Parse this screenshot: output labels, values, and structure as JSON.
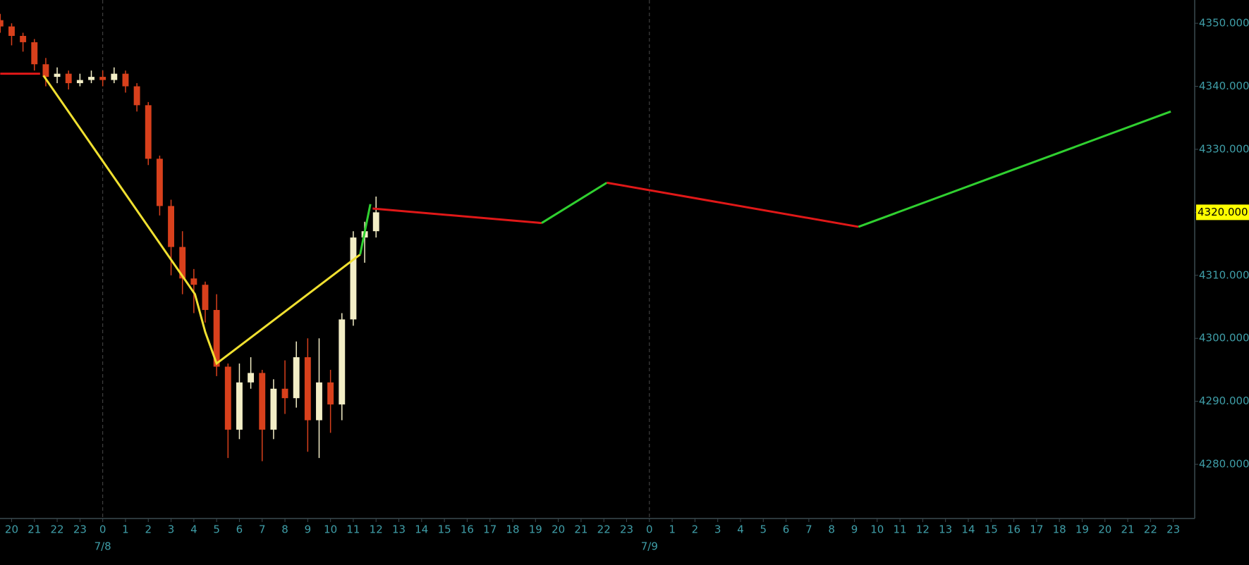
{
  "chart_data": {
    "type": "candlestick",
    "xlim": [
      -4.51,
      47.94
    ],
    "ylim": [
      4271.4,
      4353.7
    ],
    "xticks": [
      {
        "value": -4,
        "label": "20"
      },
      {
        "value": -3,
        "label": "21"
      },
      {
        "value": -2,
        "label": "22"
      },
      {
        "value": -1,
        "label": "23"
      },
      0,
      1,
      2,
      3,
      4,
      5,
      6,
      7,
      8,
      9,
      10,
      11,
      12,
      13,
      14,
      15,
      16,
      17,
      18,
      19,
      20,
      21,
      22,
      23,
      {
        "value": 24,
        "label": "0"
      },
      {
        "value": 25,
        "label": "1"
      },
      {
        "value": 26,
        "label": "2"
      },
      {
        "value": 27,
        "label": "3"
      },
      {
        "value": 28,
        "label": "4"
      },
      {
        "value": 29,
        "label": "5"
      },
      {
        "value": 30,
        "label": "6"
      },
      {
        "value": 31,
        "label": "7"
      },
      {
        "value": 32,
        "label": "8"
      },
      {
        "value": 33,
        "label": "9"
      },
      {
        "value": 34,
        "label": "10"
      },
      {
        "value": 35,
        "label": "11"
      },
      {
        "value": 36,
        "label": "12"
      },
      {
        "value": 37,
        "label": "13"
      },
      {
        "value": 38,
        "label": "14"
      },
      {
        "value": 39,
        "label": "15"
      },
      {
        "value": 40,
        "label": "16"
      },
      {
        "value": 41,
        "label": "17"
      },
      {
        "value": 42,
        "label": "18"
      },
      {
        "value": 43,
        "label": "19"
      },
      {
        "value": 44,
        "label": "20"
      },
      {
        "value": 45,
        "label": "21"
      },
      {
        "value": 46,
        "label": "22"
      },
      {
        "value": 47,
        "label": "23"
      }
    ],
    "date_labels": [
      {
        "value": 0,
        "label": "7/8"
      },
      {
        "value": 24,
        "label": "7/9"
      }
    ],
    "yticks": [
      {
        "value": 4280,
        "label": "4280.000"
      },
      {
        "value": 4290,
        "label": "4290.000"
      },
      {
        "value": 4300,
        "label": "4300.000"
      },
      {
        "value": 4310,
        "label": "4310.000"
      },
      {
        "value": 4320,
        "label": "4320.000"
      },
      {
        "value": 4330,
        "label": "4330.000"
      },
      {
        "value": 4340,
        "label": "4340.000"
      },
      {
        "value": 4350,
        "label": "4350.000"
      }
    ],
    "last_price": {
      "value": 4320,
      "label": "4320.000"
    },
    "up_color": "#f3eec6",
    "down_color": "#d8401c",
    "x": [
      -4.5,
      -4,
      -3.5,
      -3,
      -2.5,
      -2,
      -1.5,
      -1,
      -0.5,
      0,
      0.5,
      1,
      1.5,
      2,
      2.5,
      3,
      3.5,
      4,
      4.5,
      5,
      5.5,
      6,
      6.5,
      7,
      7.5,
      8,
      8.5,
      9,
      9.5,
      10,
      10.5,
      11,
      11.5,
      12
    ],
    "open": [
      4350.5,
      4349.5,
      4348,
      4347,
      4343.5,
      4341.5,
      4342,
      4340.5,
      4341,
      4341.5,
      4341,
      4342,
      4340,
      4337,
      4328.5,
      4321,
      4314.5,
      4309.5,
      4308.5,
      4304.5,
      4295.5,
      4285.5,
      4293,
      4294.5,
      4285.5,
      4292,
      4290.5,
      4297,
      4287,
      4293,
      4289.5,
      4303,
      4316,
      4317
    ],
    "high": [
      4351.5,
      4350,
      4348.5,
      4347.5,
      4344.5,
      4343,
      4342.5,
      4342,
      4342.5,
      4342.5,
      4343,
      4342.5,
      4340.5,
      4337.5,
      4329,
      4322,
      4317,
      4311,
      4309,
      4307,
      4296,
      4296,
      4297,
      4295,
      4293.5,
      4296.5,
      4299.5,
      4300,
      4300,
      4295,
      4304,
      4317,
      4318.5,
      4322.5
    ],
    "low": [
      4348.5,
      4346.5,
      4345.5,
      4342.5,
      4340,
      4340.5,
      4339.5,
      4340,
      4340.5,
      4340,
      4340.5,
      4339,
      4336,
      4327.5,
      4319.5,
      4310,
      4307,
      4304,
      4302.5,
      4294,
      4281,
      4284,
      4292,
      4280.5,
      4284,
      4288,
      4289,
      4282,
      4281,
      4285,
      4287,
      4302,
      4312,
      4316
    ],
    "close": [
      4349.5,
      4348,
      4347,
      4343.5,
      4341.5,
      4342,
      4340.5,
      4341,
      4341.5,
      4341,
      4342,
      4340,
      4337,
      4328.5,
      4321,
      4314.5,
      4309.5,
      4308.5,
      4304.5,
      4295.5,
      4285.5,
      4293,
      4294.5,
      4285.5,
      4292,
      4290.5,
      4297,
      4287,
      4293,
      4289.5,
      4303,
      4316,
      4317,
      4320
    ],
    "lines": [
      {
        "color": "#e01818",
        "x": [
          -4.5,
          -2.75
        ],
        "values": [
          4342,
          4342
        ]
      },
      {
        "color": "#f0e030",
        "x": [
          -2.6,
          4.05,
          4.5,
          5.0,
          11.3
        ],
        "values": [
          4341.7,
          4307,
          4301,
          4296,
          4313.3
        ]
      },
      {
        "color": "#30d030",
        "x": [
          11.3,
          11.75
        ],
        "values": [
          4313.3,
          4321.3
        ]
      },
      {
        "color": "#e01818",
        "x": [
          11.85,
          19.27
        ],
        "values": [
          4320.6,
          4318.3
        ]
      },
      {
        "color": "#30d030",
        "x": [
          19.27,
          22.13
        ],
        "values": [
          4318.3,
          4324.7
        ]
      },
      {
        "color": "#e01818",
        "x": [
          22.13,
          33.18
        ],
        "values": [
          4324.7,
          4317.7
        ]
      },
      {
        "color": "#30d030",
        "x": [
          33.18,
          46.89
        ],
        "values": [
          4317.7,
          4336.0
        ]
      }
    ]
  }
}
